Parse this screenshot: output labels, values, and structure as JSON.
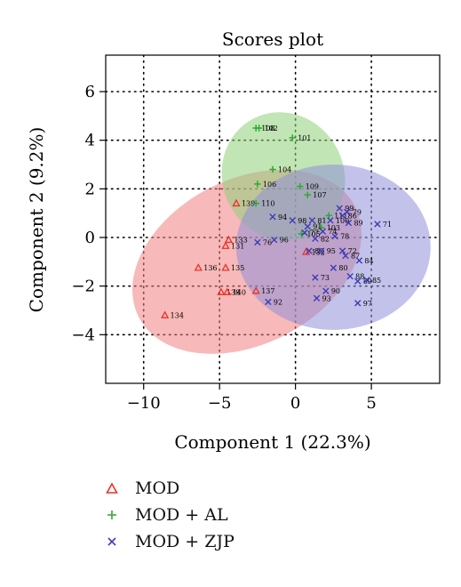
{
  "chart_data": {
    "type": "scatter",
    "title": "Scores plot",
    "xlabel": "Component 1 (22.3%)",
    "ylabel": "Component 2 (9.2%)",
    "xlim": [
      -12.5,
      9.5
    ],
    "ylim": [
      -6,
      7.5
    ],
    "xticks": [
      -10,
      -5,
      0,
      5
    ],
    "yticks": [
      -4,
      -2,
      0,
      2,
      4,
      6
    ],
    "grid": "dotted",
    "legend_position": "below",
    "series": [
      {
        "name": "MOD",
        "marker": "triangle",
        "color": "#e8322b",
        "points": [
          {
            "x": -3.9,
            "y": 1.4,
            "label": "139"
          },
          {
            "x": -4.4,
            "y": -0.1,
            "label": "133"
          },
          {
            "x": -4.6,
            "y": -0.35,
            "label": "131"
          },
          {
            "x": -6.4,
            "y": -1.25,
            "label": "136"
          },
          {
            "x": -4.6,
            "y": -1.25,
            "label": "135"
          },
          {
            "x": -4.9,
            "y": -2.25,
            "label": "138"
          },
          {
            "x": -4.5,
            "y": -2.25,
            "label": "140"
          },
          {
            "x": -2.6,
            "y": -2.2,
            "label": "137"
          },
          {
            "x": -8.6,
            "y": -3.2,
            "label": "134"
          },
          {
            "x": 0.7,
            "y": -0.6,
            "label": "132"
          }
        ],
        "ellipse": {
          "cx": -3.2,
          "cy": -1.0,
          "rx": 8.0,
          "ry": 3.4,
          "angle_deg": 27,
          "color": "#f08080"
        }
      },
      {
        "name": "MOD + AL",
        "marker": "plus",
        "color": "#2eaa2e",
        "points": [
          {
            "x": -2.6,
            "y": 4.5,
            "label": "108"
          },
          {
            "x": -2.4,
            "y": 4.5,
            "label": "102"
          },
          {
            "x": -0.2,
            "y": 4.1,
            "label": "101"
          },
          {
            "x": -1.5,
            "y": 2.8,
            "label": "104"
          },
          {
            "x": -2.5,
            "y": 2.2,
            "label": "106"
          },
          {
            "x": 0.3,
            "y": 2.1,
            "label": "109"
          },
          {
            "x": 0.8,
            "y": 1.75,
            "label": "107"
          },
          {
            "x": -2.6,
            "y": 1.4,
            "label": "110"
          },
          {
            "x": 0.4,
            "y": 0.15,
            "label": "105"
          },
          {
            "x": 1.7,
            "y": 0.4,
            "label": "103"
          },
          {
            "x": 2.2,
            "y": 0.9,
            "label": "111"
          }
        ],
        "ellipse": {
          "cx": -0.8,
          "cy": 2.5,
          "rx": 4.3,
          "ry": 2.5,
          "angle_deg": -63,
          "color": "#8fd07a"
        }
      },
      {
        "name": "MOD + ZJP",
        "marker": "x",
        "color": "#3c3cb4",
        "points": [
          {
            "x": 2.9,
            "y": 1.2,
            "label": "99"
          },
          {
            "x": 3.4,
            "y": 1.05,
            "label": "79"
          },
          {
            "x": 3.1,
            "y": 0.9,
            "label": "86"
          },
          {
            "x": 2.3,
            "y": 0.7,
            "label": "100"
          },
          {
            "x": 3.5,
            "y": 0.6,
            "label": "89"
          },
          {
            "x": 5.4,
            "y": 0.55,
            "label": "71"
          },
          {
            "x": -1.5,
            "y": 0.85,
            "label": "94"
          },
          {
            "x": -0.2,
            "y": 0.7,
            "label": "98"
          },
          {
            "x": 1.1,
            "y": 0.7,
            "label": "81"
          },
          {
            "x": 0.8,
            "y": 0.45,
            "label": "91"
          },
          {
            "x": 0.6,
            "y": 0.2,
            "label": "77"
          },
          {
            "x": 1.8,
            "y": 0.25,
            "label": "74"
          },
          {
            "x": 1.3,
            "y": -0.05,
            "label": "82"
          },
          {
            "x": 2.6,
            "y": 0.05,
            "label": "78"
          },
          {
            "x": -2.5,
            "y": -0.2,
            "label": "76"
          },
          {
            "x": -1.4,
            "y": -0.1,
            "label": "96"
          },
          {
            "x": 0.9,
            "y": -0.55,
            "label": "83"
          },
          {
            "x": 1.7,
            "y": -0.55,
            "label": "95"
          },
          {
            "x": 3.1,
            "y": -0.55,
            "label": "72"
          },
          {
            "x": 3.3,
            "y": -0.75,
            "label": "87"
          },
          {
            "x": 4.2,
            "y": -0.95,
            "label": "84"
          },
          {
            "x": 2.5,
            "y": -1.25,
            "label": "80"
          },
          {
            "x": 1.3,
            "y": -1.65,
            "label": "73"
          },
          {
            "x": 3.6,
            "y": -1.6,
            "label": "88"
          },
          {
            "x": 4.1,
            "y": -1.8,
            "label": "89"
          },
          {
            "x": 4.7,
            "y": -1.75,
            "label": "85"
          },
          {
            "x": 2.0,
            "y": -2.2,
            "label": "90"
          },
          {
            "x": 1.4,
            "y": -2.5,
            "label": "93"
          },
          {
            "x": -1.8,
            "y": -2.65,
            "label": "92"
          },
          {
            "x": 4.1,
            "y": -2.7,
            "label": "97"
          }
        ],
        "ellipse": {
          "cx": 2.5,
          "cy": -0.4,
          "rx": 6.4,
          "ry": 3.4,
          "angle_deg": 0,
          "color": "#8f8fd8"
        }
      }
    ]
  },
  "legend": {
    "items": [
      {
        "label": "MOD",
        "marker": "triangle",
        "color": "#e8322b"
      },
      {
        "label": "MOD + AL",
        "marker": "plus",
        "color": "#2eaa2e"
      },
      {
        "label": "MOD + ZJP",
        "marker": "x",
        "color": "#3c3cb4"
      }
    ]
  }
}
